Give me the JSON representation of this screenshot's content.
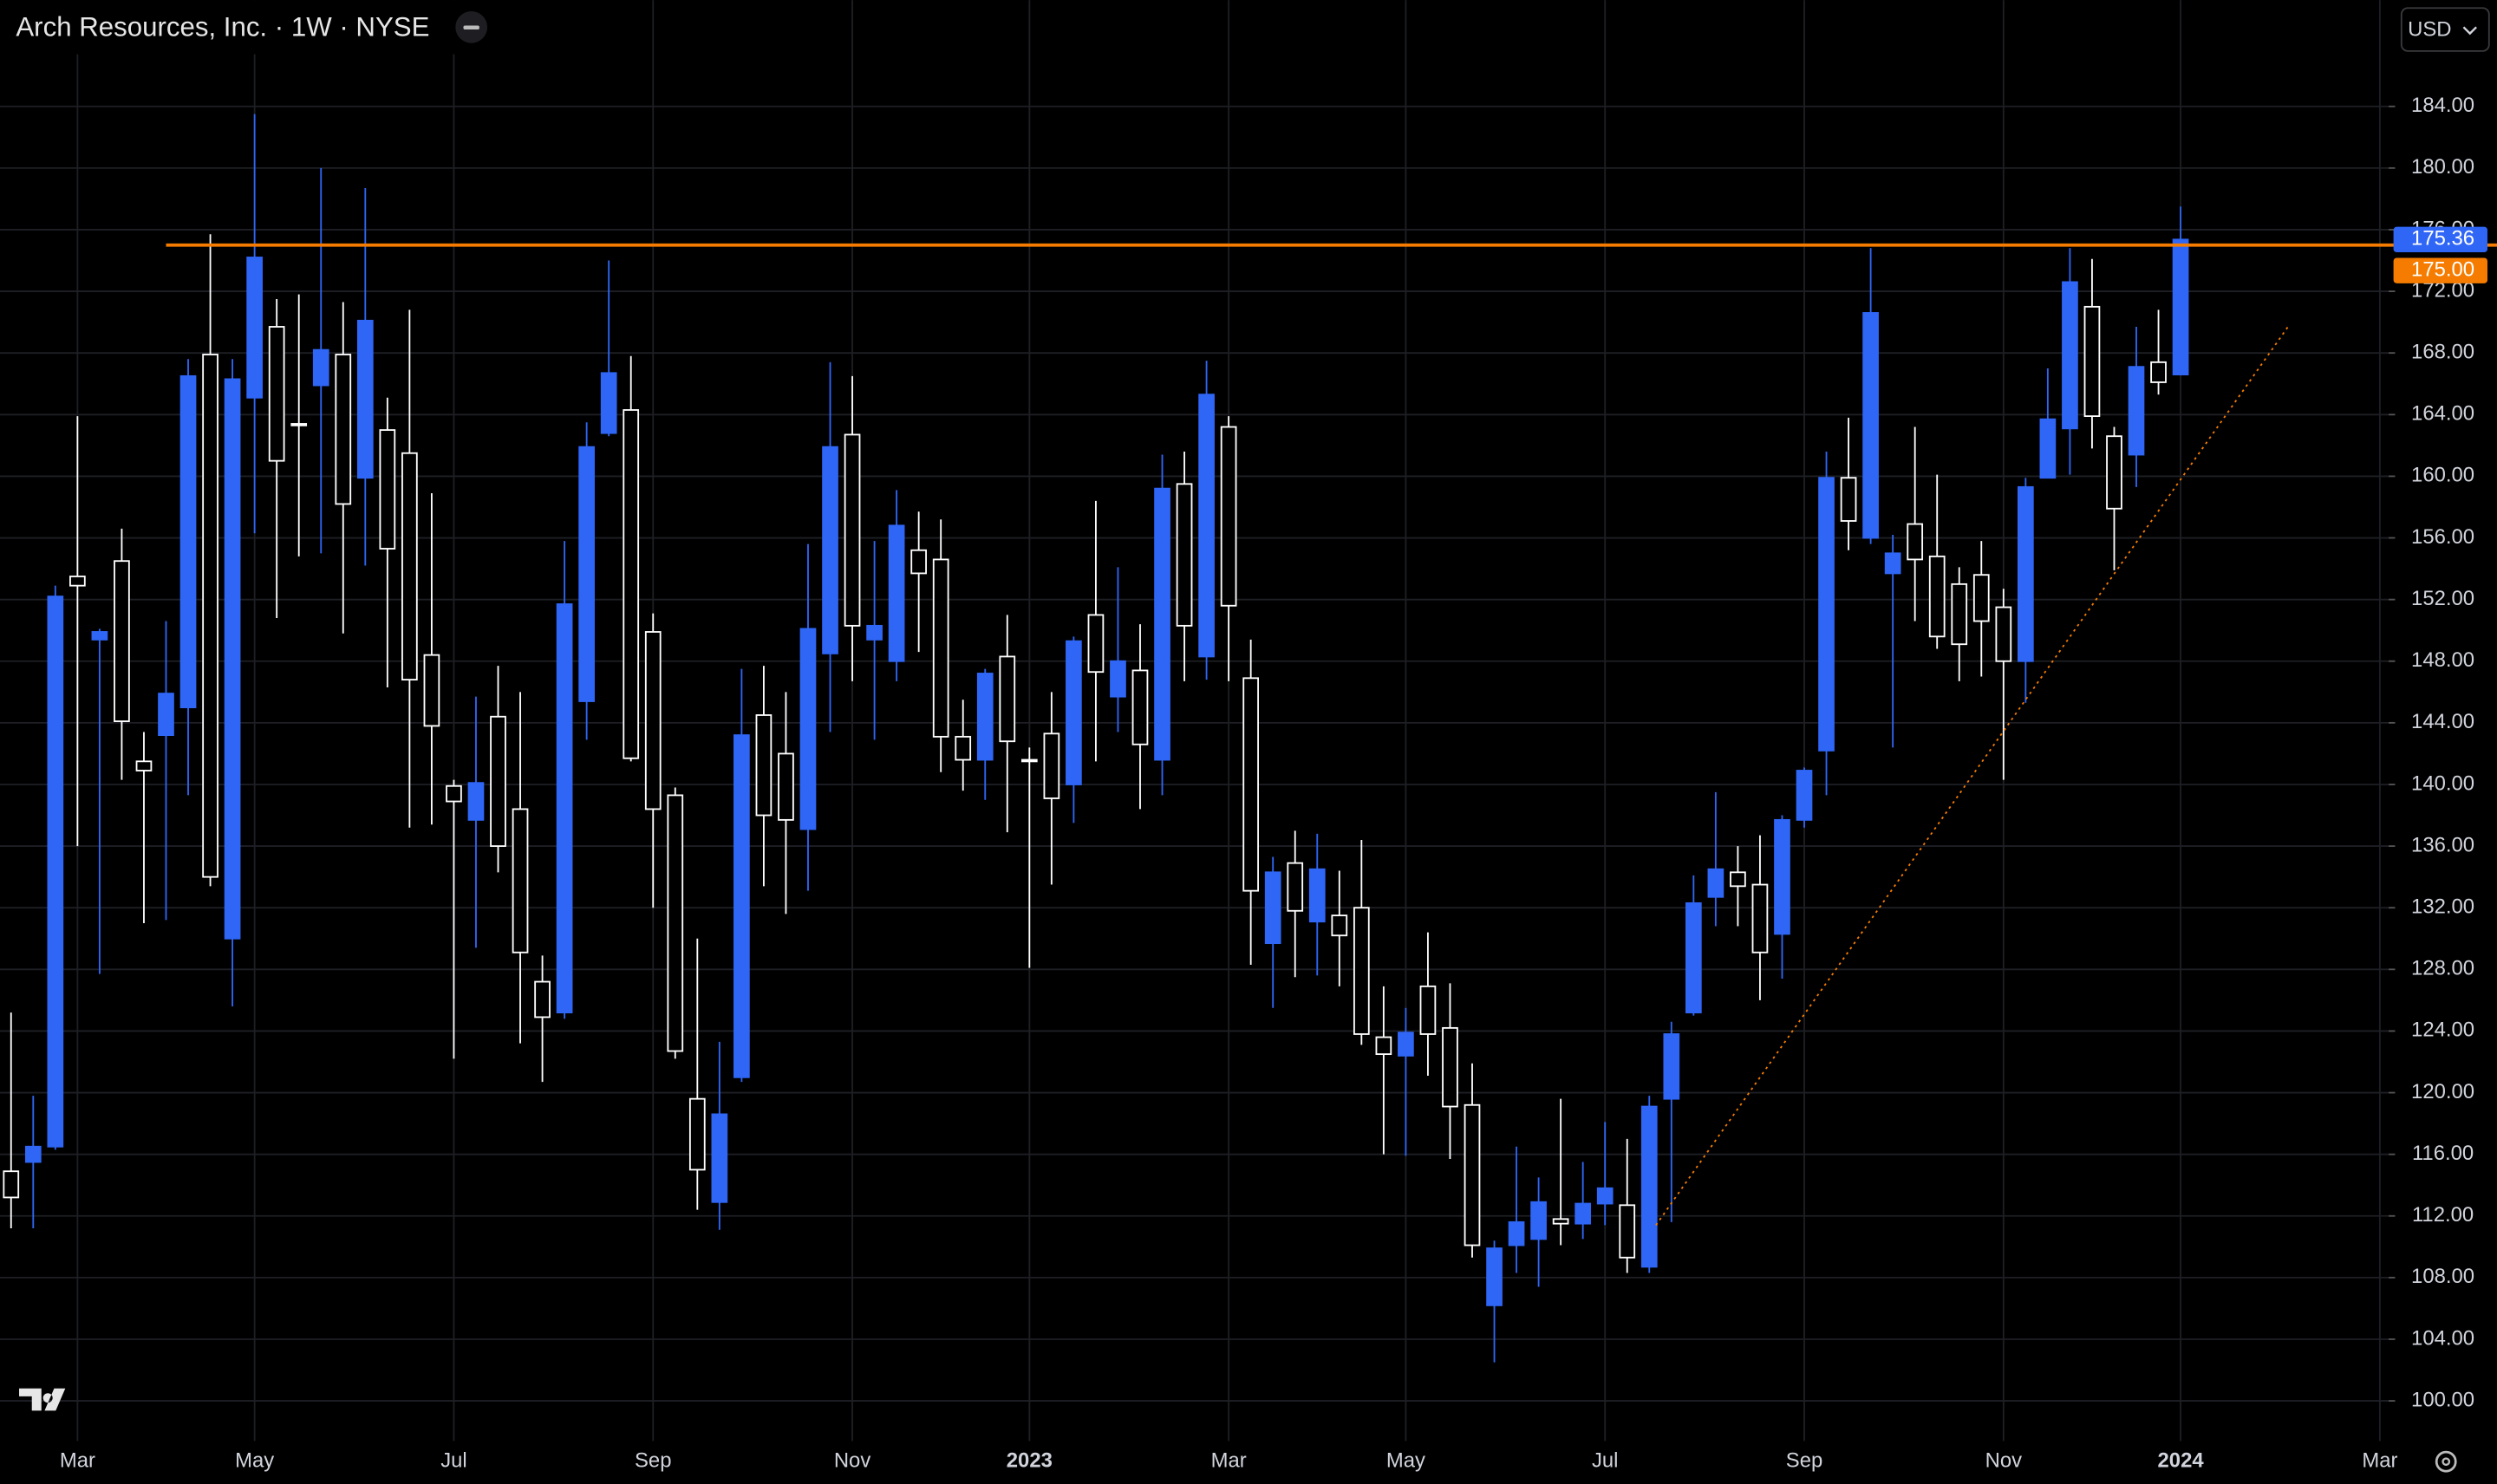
{
  "chart_data": {
    "type": "candlestick",
    "title": "Arch Resources, Inc. · 1W · NYSE",
    "currency": "USD",
    "open": [
      114.9,
      115.5,
      116.5,
      153.5,
      149.4,
      154.5,
      141.5,
      143.2,
      145.0,
      167.9,
      130.0,
      165.1,
      169.7,
      163.4,
      165.9,
      167.9,
      159.9,
      163.0,
      161.5,
      148.4,
      139.9,
      137.7,
      144.4,
      138.4,
      127.2,
      125.2,
      145.4,
      162.8,
      164.3,
      149.9,
      139.3,
      119.6,
      112.9,
      121.0,
      144.5,
      142.0,
      137.1,
      148.5,
      162.7,
      149.4,
      148.0,
      155.2,
      154.6,
      143.1,
      141.6,
      148.3,
      141.6,
      143.3,
      140.0,
      151.0,
      145.7,
      147.4,
      141.6,
      159.5,
      148.3,
      163.2,
      146.9,
      129.7,
      134.9,
      131.1,
      131.5,
      132.0,
      123.6,
      122.4,
      126.9,
      124.2,
      119.2,
      106.2,
      110.1,
      110.5,
      111.8,
      111.5,
      112.8,
      112.7,
      108.7,
      119.6,
      125.2,
      132.7,
      134.3,
      133.5,
      130.3,
      137.7,
      142.2,
      159.9,
      156.0,
      153.7,
      156.9,
      154.8,
      153.0,
      153.6,
      151.5,
      148.0,
      159.9,
      163.1,
      171.0,
      162.6,
      161.4,
      167.4,
      166.6
    ],
    "high": [
      125.2,
      119.8,
      152.9,
      163.9,
      150.1,
      156.6,
      143.4,
      150.6,
      167.6,
      175.7,
      167.6,
      183.5,
      171.5,
      171.8,
      180.0,
      171.3,
      178.7,
      165.1,
      170.8,
      158.9,
      140.3,
      145.7,
      147.7,
      146.0,
      128.9,
      155.8,
      163.5,
      174.0,
      167.8,
      151.1,
      139.8,
      130.0,
      123.3,
      147.5,
      147.7,
      146.0,
      155.6,
      167.4,
      166.5,
      155.8,
      159.1,
      157.7,
      157.2,
      145.5,
      147.5,
      151.0,
      142.4,
      146.0,
      149.6,
      158.4,
      154.1,
      150.4,
      161.4,
      161.6,
      167.5,
      163.9,
      149.4,
      135.3,
      137.0,
      136.8,
      134.4,
      136.4,
      126.9,
      125.5,
      130.4,
      127.1,
      121.9,
      110.4,
      116.5,
      114.5,
      119.6,
      115.5,
      118.1,
      117.0,
      119.8,
      124.6,
      134.1,
      139.5,
      136.0,
      136.7,
      138.0,
      141.1,
      161.6,
      163.8,
      174.8,
      156.2,
      163.2,
      160.1,
      154.1,
      155.8,
      152.7,
      159.9,
      167.0,
      174.8,
      174.1,
      163.2,
      169.7,
      170.8,
      177.5
    ],
    "low": [
      111.2,
      111.2,
      116.3,
      136.0,
      127.7,
      140.3,
      131.0,
      131.2,
      139.3,
      133.4,
      125.6,
      156.3,
      150.8,
      154.8,
      155.0,
      149.8,
      154.2,
      146.3,
      137.2,
      137.4,
      122.2,
      129.4,
      134.3,
      123.2,
      120.7,
      124.8,
      142.9,
      162.6,
      141.5,
      132.0,
      122.2,
      112.4,
      111.1,
      120.7,
      133.4,
      131.6,
      133.1,
      143.4,
      146.7,
      142.9,
      146.7,
      148.6,
      140.8,
      139.6,
      139.0,
      136.9,
      128.1,
      133.5,
      137.5,
      141.5,
      143.4,
      138.4,
      139.3,
      146.7,
      146.8,
      146.7,
      128.3,
      125.5,
      127.5,
      127.6,
      126.9,
      123.1,
      116.0,
      115.9,
      121.1,
      115.7,
      109.3,
      102.5,
      108.3,
      107.4,
      110.1,
      110.5,
      111.4,
      108.3,
      108.3,
      111.6,
      125.0,
      130.8,
      130.8,
      126.0,
      127.4,
      137.2,
      139.3,
      155.2,
      155.6,
      142.4,
      150.6,
      148.8,
      146.7,
      147.0,
      140.3,
      145.3,
      159.9,
      160.1,
      161.8,
      153.9,
      159.3,
      165.3,
      166.6
    ],
    "close": [
      113.2,
      116.5,
      152.2,
      152.9,
      149.9,
      144.1,
      140.9,
      145.9,
      166.5,
      134.0,
      166.3,
      174.2,
      161.0,
      163.3,
      168.2,
      158.2,
      170.1,
      155.3,
      146.8,
      143.8,
      138.9,
      140.1,
      136.0,
      129.1,
      124.9,
      151.7,
      161.9,
      166.7,
      141.7,
      138.4,
      122.7,
      115.0,
      118.6,
      143.2,
      138.0,
      137.7,
      150.1,
      161.9,
      150.3,
      150.3,
      156.8,
      153.7,
      143.1,
      141.6,
      147.2,
      142.8,
      141.5,
      139.1,
      149.3,
      147.3,
      148.0,
      142.6,
      159.2,
      150.3,
      165.3,
      151.6,
      133.1,
      134.3,
      131.8,
      134.5,
      130.2,
      123.8,
      122.5,
      123.9,
      123.8,
      119.1,
      110.1,
      109.9,
      111.6,
      112.9,
      111.5,
      112.8,
      113.8,
      109.3,
      119.1,
      123.8,
      132.3,
      134.5,
      133.4,
      129.1,
      137.7,
      140.9,
      159.9,
      157.1,
      170.6,
      155.0,
      154.6,
      149.6,
      149.1,
      150.6,
      148.0,
      159.3,
      163.7,
      172.6,
      163.9,
      157.9,
      167.1,
      166.1,
      175.36
    ],
    "up_color": "#2f66f6",
    "down_color": "#ffffff",
    "xlim": [
      -0.5,
      107.4
    ],
    "xticks": [
      {
        "value": 3,
        "label": "Mar"
      },
      {
        "value": 11,
        "label": "May"
      },
      {
        "value": 20,
        "label": "Jul"
      },
      {
        "value": 29,
        "label": "Sep"
      },
      {
        "value": 38,
        "label": "Nov"
      },
      {
        "value": 46,
        "label": "2023"
      },
      {
        "value": 55,
        "label": "Mar"
      },
      {
        "value": 63,
        "label": "May"
      },
      {
        "value": 72,
        "label": "Jul"
      },
      {
        "value": 81,
        "label": "Sep"
      },
      {
        "value": 90,
        "label": "Nov"
      },
      {
        "value": 98,
        "label": "2024"
      },
      {
        "value": 107,
        "label": "Mar"
      }
    ],
    "ylim": [
      97.4,
      190.9
    ],
    "yticks": [
      {
        "value": 100,
        "label": "100.00"
      },
      {
        "value": 104,
        "label": "104.00"
      },
      {
        "value": 108,
        "label": "108.00"
      },
      {
        "value": 112,
        "label": "112.00"
      },
      {
        "value": 116,
        "label": "116.00"
      },
      {
        "value": 120,
        "label": "120.00"
      },
      {
        "value": 124,
        "label": "124.00"
      },
      {
        "value": 128,
        "label": "128.00"
      },
      {
        "value": 132,
        "label": "132.00"
      },
      {
        "value": 136,
        "label": "136.00"
      },
      {
        "value": 140,
        "label": "140.00"
      },
      {
        "value": 144,
        "label": "144.00"
      },
      {
        "value": 148,
        "label": "148.00"
      },
      {
        "value": 152,
        "label": "152.00"
      },
      {
        "value": 156,
        "label": "156.00"
      },
      {
        "value": 160,
        "label": "160.00"
      },
      {
        "value": 164,
        "label": "164.00"
      },
      {
        "value": 168,
        "label": "168.00"
      },
      {
        "value": 172,
        "label": "172.00"
      },
      {
        "value": 176,
        "label": "176.00"
      },
      {
        "value": 180,
        "label": "180.00"
      },
      {
        "value": 184,
        "label": "184.00"
      }
    ],
    "grid": true,
    "hline": {
      "value": 175,
      "label": "175.00",
      "start": 7.0,
      "color": "#f57c00"
    },
    "trendline": {
      "x": [
        74.3,
        102.9
      ],
      "y": [
        111.4,
        169.8
      ],
      "color": "#f57c00"
    }
  }
}
